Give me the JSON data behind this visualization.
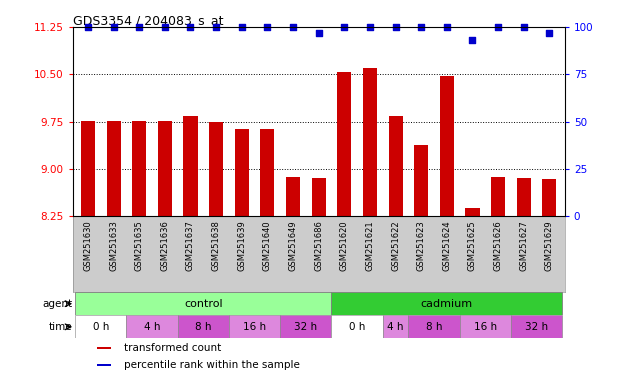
{
  "title": "GDS3354 / 204083_s_at",
  "samples": [
    "GSM251630",
    "GSM251633",
    "GSM251635",
    "GSM251636",
    "GSM251637",
    "GSM251638",
    "GSM251639",
    "GSM251640",
    "GSM251649",
    "GSM251686",
    "GSM251620",
    "GSM251621",
    "GSM251622",
    "GSM251623",
    "GSM251624",
    "GSM251625",
    "GSM251626",
    "GSM251627",
    "GSM251629"
  ],
  "bar_values": [
    9.76,
    9.76,
    9.76,
    9.76,
    9.84,
    9.75,
    9.64,
    9.63,
    8.87,
    8.86,
    10.54,
    10.6,
    9.84,
    9.38,
    10.47,
    8.38,
    8.87,
    8.86,
    8.84
  ],
  "percentile_values": [
    100,
    100,
    100,
    100,
    100,
    100,
    100,
    100,
    100,
    97,
    100,
    100,
    100,
    100,
    100,
    93,
    100,
    100,
    97
  ],
  "ylim_left": [
    8.25,
    11.25
  ],
  "ylim_right": [
    0,
    100
  ],
  "yticks_left": [
    8.25,
    9.0,
    9.75,
    10.5,
    11.25
  ],
  "yticks_right": [
    0,
    25,
    50,
    75,
    100
  ],
  "bar_color": "#cc0000",
  "dot_color": "#0000cc",
  "agent_control_color": "#99ff99",
  "agent_cadmium_color": "#33cc33",
  "sample_bg_color": "#cccccc",
  "time_groups": [
    {
      "start": 0,
      "end": 1,
      "label": "0 h",
      "color": "#ffffff"
    },
    {
      "start": 2,
      "end": 3,
      "label": "4 h",
      "color": "#dd88dd"
    },
    {
      "start": 4,
      "end": 5,
      "label": "8 h",
      "color": "#cc55cc"
    },
    {
      "start": 6,
      "end": 7,
      "label": "16 h",
      "color": "#dd88dd"
    },
    {
      "start": 8,
      "end": 9,
      "label": "32 h",
      "color": "#cc55cc"
    },
    {
      "start": 10,
      "end": 11,
      "label": "0 h",
      "color": "#ffffff"
    },
    {
      "start": 12,
      "end": 12,
      "label": "4 h",
      "color": "#dd88dd"
    },
    {
      "start": 13,
      "end": 14,
      "label": "8 h",
      "color": "#cc55cc"
    },
    {
      "start": 15,
      "end": 16,
      "label": "16 h",
      "color": "#dd88dd"
    },
    {
      "start": 17,
      "end": 18,
      "label": "32 h",
      "color": "#cc55cc"
    }
  ],
  "legend_items": [
    {
      "color": "#cc0000",
      "label": "transformed count"
    },
    {
      "color": "#0000cc",
      "label": "percentile rank within the sample"
    }
  ]
}
